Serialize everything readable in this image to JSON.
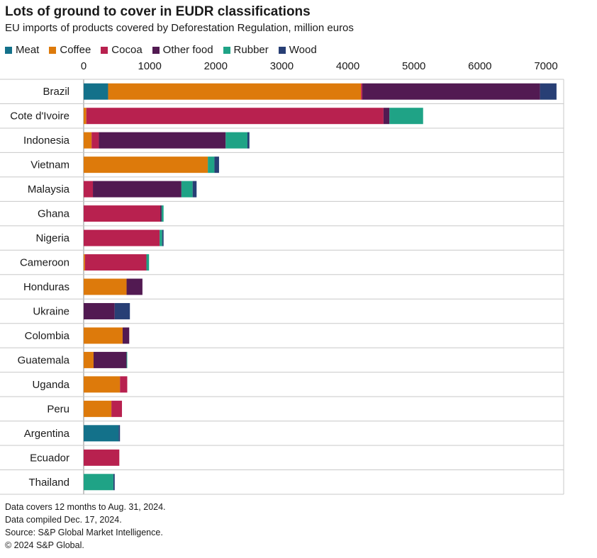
{
  "chart_data": {
    "type": "bar",
    "orientation": "horizontal",
    "stacked": true,
    "title": "Lots of ground to cover in EUDR classifications",
    "subtitle": "EU imports of products covered by Deforestation Regulation, million euros",
    "xlim": [
      0,
      7000
    ],
    "x_ticks": [
      "0",
      "1000",
      "2000",
      "3000",
      "4000",
      "5000",
      "6000",
      "7000"
    ],
    "x_tick_values": [
      0,
      1000,
      2000,
      3000,
      4000,
      5000,
      6000,
      7000
    ],
    "legend_position": "top",
    "grid": "horizontal separators between categories",
    "categories": [
      "Brazil",
      "Cote d'Ivoire",
      "Indonesia",
      "Vietnam",
      "Malaysia",
      "Ghana",
      "Nigeria",
      "Cameroon",
      "Honduras",
      "Ukraine",
      "Colombia",
      "Guatemala",
      "Uganda",
      "Peru",
      "Argentina",
      "Ecuador",
      "Thailand"
    ],
    "series": [
      {
        "name": "Meat",
        "color": "#13718a",
        "values": [
          370,
          0,
          0,
          0,
          0,
          0,
          0,
          0,
          0,
          0,
          0,
          0,
          0,
          0,
          530,
          0,
          0
        ]
      },
      {
        "name": "Coffee",
        "color": "#dd7a0b",
        "values": [
          3830,
          40,
          120,
          1880,
          0,
          0,
          0,
          20,
          650,
          0,
          590,
          150,
          550,
          420,
          0,
          0,
          0
        ]
      },
      {
        "name": "Cocoa",
        "color": "#b8214f",
        "values": [
          20,
          4500,
          110,
          0,
          140,
          1160,
          1150,
          930,
          0,
          0,
          0,
          0,
          110,
          160,
          0,
          540,
          0
        ]
      },
      {
        "name": "Other food",
        "color": "#521a52",
        "values": [
          2690,
          90,
          1920,
          0,
          1340,
          20,
          0,
          0,
          240,
          470,
          100,
          500,
          0,
          0,
          0,
          0,
          0
        ]
      },
      {
        "name": "Rubber",
        "color": "#1fa386",
        "values": [
          0,
          510,
          330,
          100,
          170,
          30,
          40,
          40,
          0,
          0,
          0,
          10,
          0,
          0,
          0,
          0,
          450
        ]
      },
      {
        "name": "Wood",
        "color": "#283f75",
        "values": [
          250,
          0,
          30,
          70,
          60,
          0,
          20,
          0,
          0,
          230,
          0,
          0,
          0,
          0,
          20,
          0,
          20
        ]
      }
    ]
  },
  "notes": [
    "Data covers 12 months to Aug. 31, 2024.",
    "Data compiled Dec. 17, 2024.",
    "Source: S&P Global Market Intelligence.",
    "© 2024 S&P Global."
  ]
}
